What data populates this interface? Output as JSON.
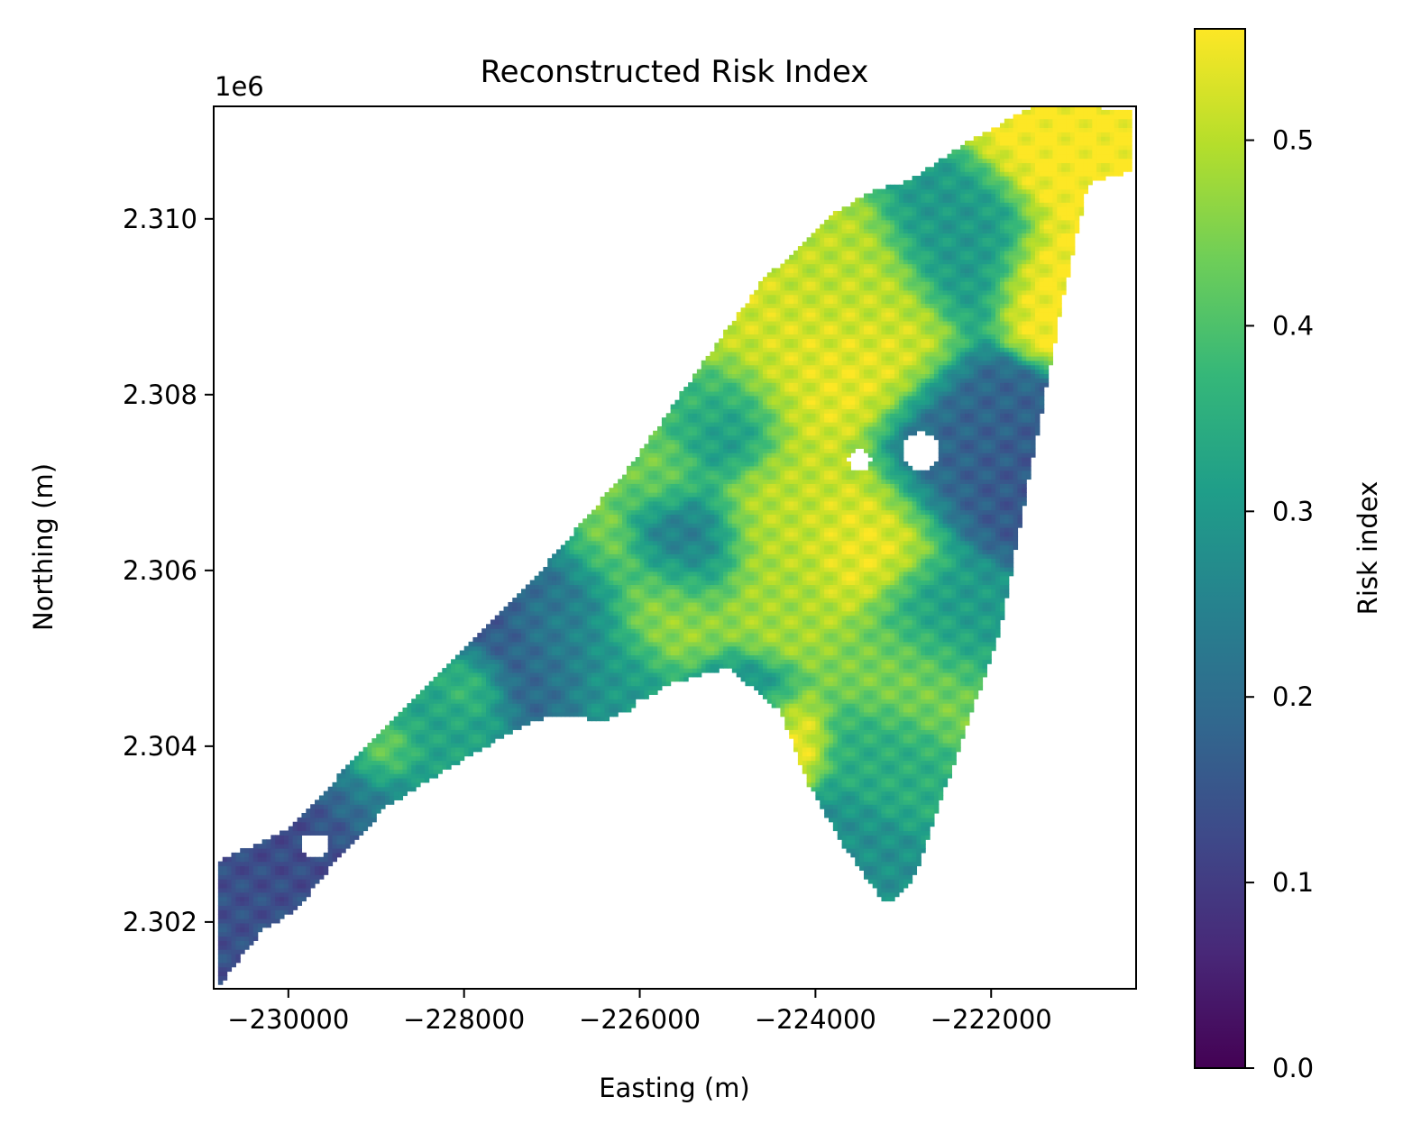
{
  "chart_data": {
    "type": "heatmap",
    "title": "Reconstructed Risk Index",
    "xlabel": "Easting (m)",
    "ylabel": "Northing (m)",
    "y_offset_label": "1e6",
    "xlim": [
      -230850,
      -220350
    ],
    "ylim": [
      2301240,
      2311280
    ],
    "x_ticks": [
      -230000,
      -228000,
      -226000,
      -224000,
      -222000
    ],
    "x_tick_labels": [
      "−230000",
      "−228000",
      "−226000",
      "−224000",
      "−222000"
    ],
    "y_ticks": [
      2302000,
      2304000,
      2306000,
      2308000,
      2310000
    ],
    "y_tick_labels": [
      "2.302",
      "2.304",
      "2.306",
      "2.308",
      "2.310"
    ],
    "colorbar": {
      "label": "Risk index",
      "colormap": "viridis",
      "range": [
        0.0,
        0.56
      ],
      "ticks": [
        0.0,
        0.1,
        0.2,
        0.3,
        0.4,
        0.5
      ],
      "tick_labels": [
        "0.0",
        "0.1",
        "0.2",
        "0.3",
        "0.4",
        "0.5"
      ]
    },
    "viridis_stops": [
      "#440154",
      "#482878",
      "#3e4989",
      "#31688e",
      "#26828e",
      "#1f9e89",
      "#35b779",
      "#6ece58",
      "#b5de2b",
      "#fde725"
    ],
    "grid": false,
    "study_area_polygon": [
      [
        -230800,
        2301270
      ],
      [
        -230300,
        2301900
      ],
      [
        -229900,
        2302150
      ],
      [
        -229500,
        2302650
      ],
      [
        -228900,
        2303300
      ],
      [
        -228100,
        2303800
      ],
      [
        -227400,
        2304200
      ],
      [
        -227000,
        2304350
      ],
      [
        -226400,
        2304300
      ],
      [
        -226000,
        2304450
      ],
      [
        -225700,
        2304700
      ],
      [
        -225000,
        2304900
      ],
      [
        -224400,
        2304400
      ],
      [
        -224100,
        2303600
      ],
      [
        -223700,
        2302900
      ],
      [
        -223200,
        2302200
      ],
      [
        -222900,
        2302450
      ],
      [
        -221900,
        2305300
      ],
      [
        -221200,
        2309000
      ],
      [
        -220900,
        2310400
      ],
      [
        -220400,
        2310550
      ],
      [
        -220400,
        2311250
      ],
      [
        -221500,
        2311300
      ],
      [
        -222400,
        2310800
      ],
      [
        -222900,
        2310450
      ],
      [
        -223400,
        2310300
      ],
      [
        -223800,
        2310050
      ],
      [
        -224600,
        2309300
      ],
      [
        -225400,
        2308200
      ],
      [
        -226100,
        2307200
      ],
      [
        -227300,
        2305800
      ],
      [
        -228200,
        2304900
      ],
      [
        -229300,
        2303800
      ],
      [
        -230000,
        2303050
      ],
      [
        -230800,
        2302700
      ]
    ],
    "value_field": [
      {
        "x": -220900,
        "y": 2310850,
        "r": 700,
        "v": 0.56
      },
      {
        "x": -221300,
        "y": 2309300,
        "r": 450,
        "v": 0.56
      },
      {
        "x": -222300,
        "y": 2309700,
        "r": 550,
        "v": 0.3
      },
      {
        "x": -223500,
        "y": 2309000,
        "r": 600,
        "v": 0.5
      },
      {
        "x": -223600,
        "y": 2308400,
        "r": 650,
        "v": 0.55
      },
      {
        "x": -224500,
        "y": 2308200,
        "r": 650,
        "v": 0.52
      },
      {
        "x": -225000,
        "y": 2307700,
        "r": 450,
        "v": 0.2
      },
      {
        "x": -222400,
        "y": 2307300,
        "r": 650,
        "v": 0.18
      },
      {
        "x": -221800,
        "y": 2307000,
        "r": 450,
        "v": 0.15
      },
      {
        "x": -223400,
        "y": 2306400,
        "r": 600,
        "v": 0.55
      },
      {
        "x": -224300,
        "y": 2306600,
        "r": 700,
        "v": 0.5
      },
      {
        "x": -225500,
        "y": 2306300,
        "r": 500,
        "v": 0.2
      },
      {
        "x": -225700,
        "y": 2305600,
        "r": 550,
        "v": 0.48
      },
      {
        "x": -226800,
        "y": 2305900,
        "r": 450,
        "v": 0.15
      },
      {
        "x": -226800,
        "y": 2305400,
        "r": 500,
        "v": 0.3
      },
      {
        "x": -227400,
        "y": 2305100,
        "r": 600,
        "v": 0.14
      },
      {
        "x": -227000,
        "y": 2305000,
        "r": 450,
        "v": 0.22
      },
      {
        "x": -226300,
        "y": 2304800,
        "r": 450,
        "v": 0.3
      },
      {
        "x": -224400,
        "y": 2304000,
        "r": 380,
        "v": 0.56
      },
      {
        "x": -223000,
        "y": 2304900,
        "r": 550,
        "v": 0.45
      },
      {
        "x": -222600,
        "y": 2305500,
        "r": 500,
        "v": 0.3
      },
      {
        "x": -223300,
        "y": 2303900,
        "r": 450,
        "v": 0.35
      },
      {
        "x": -223800,
        "y": 2302900,
        "r": 450,
        "v": 0.28
      },
      {
        "x": -224400,
        "y": 2305700,
        "r": 450,
        "v": 0.48
      },
      {
        "x": -225000,
        "y": 2304300,
        "r": 500,
        "v": 0.28
      },
      {
        "x": -228200,
        "y": 2304200,
        "r": 600,
        "v": 0.33
      },
      {
        "x": -229000,
        "y": 2303500,
        "r": 500,
        "v": 0.24
      },
      {
        "x": -229700,
        "y": 2302800,
        "r": 650,
        "v": 0.13
      },
      {
        "x": -230400,
        "y": 2301900,
        "r": 500,
        "v": 0.14
      },
      {
        "x": -228900,
        "y": 2303900,
        "r": 300,
        "v": 0.52
      },
      {
        "x": -227900,
        "y": 2304700,
        "r": 300,
        "v": 0.45
      },
      {
        "x": -226500,
        "y": 2306200,
        "r": 400,
        "v": 0.5
      },
      {
        "x": -225800,
        "y": 2307100,
        "r": 400,
        "v": 0.44
      },
      {
        "x": -225200,
        "y": 2307800,
        "r": 400,
        "v": 0.42
      }
    ],
    "gaps": [
      {
        "x": -229700,
        "y": 2302880,
        "rx": 170,
        "ry": 130
      },
      {
        "x": -222800,
        "y": 2307350,
        "rx": 220,
        "ry": 220
      },
      {
        "x": -223500,
        "y": 2307250,
        "rx": 130,
        "ry": 120
      },
      {
        "x": -225800,
        "y": 2304500,
        "rx": 260,
        "ry": 70
      }
    ]
  }
}
